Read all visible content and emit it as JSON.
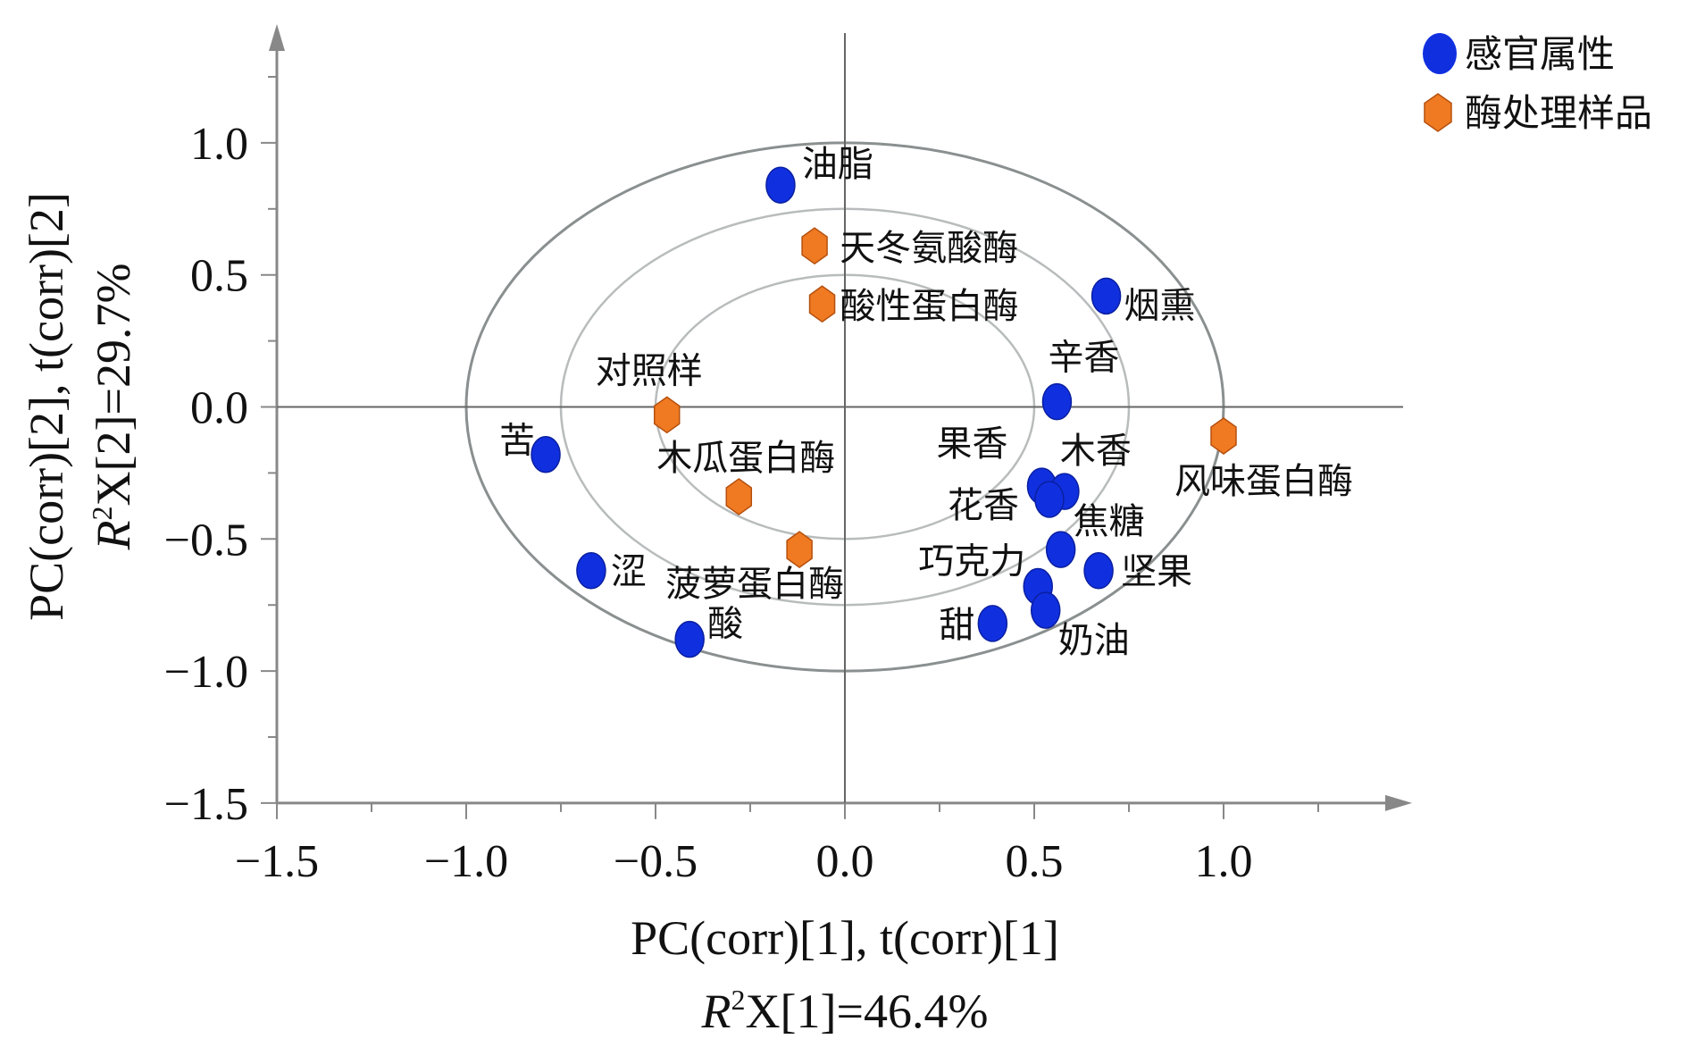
{
  "chart_data": {
    "type": "scatter",
    "title": "",
    "xlabel": "PC(corr)[1], t(corr)[1]",
    "xlabel2_r": "R",
    "xlabel2_rest": "X[1]=46.4%",
    "ylabel": "PC(corr)[2], t(corr)[2]",
    "ylabel2_r": "R",
    "ylabel2_rest": "X[2]=29.7%",
    "superscript": "2",
    "xlim": [
      -1.5,
      1.5
    ],
    "ylim": [
      -1.5,
      1.5
    ],
    "xticks": [
      "-1.5",
      "-1.0",
      "-0.5",
      "0.0",
      "0.5",
      "1.0"
    ],
    "xtick_values": [
      -1.5,
      -1.0,
      -0.5,
      0.0,
      0.5,
      1.0
    ],
    "yticks": [
      "1.0",
      "0.5",
      "0.0",
      "-0.5",
      "-1.0",
      "-1.5"
    ],
    "ytick_values": [
      1.0,
      0.5,
      0.0,
      -0.5,
      -1.0,
      -1.5
    ],
    "ellipse_radii": [
      1.0,
      0.75,
      0.5
    ],
    "legend_position": "top-right",
    "series": [
      {
        "name": "感官属性",
        "color": "#1030e0",
        "marker": "circle",
        "points": [
          {
            "label": "油脂",
            "x": -0.17,
            "y": 0.84
          },
          {
            "label": "烟熏",
            "x": 0.69,
            "y": 0.42
          },
          {
            "label": "辛香",
            "x": 0.56,
            "y": 0.02
          },
          {
            "label": "苦",
            "x": -0.79,
            "y": -0.18
          },
          {
            "label": "果香",
            "x": 0.52,
            "y": -0.3
          },
          {
            "label": "木香",
            "x": 0.58,
            "y": -0.32
          },
          {
            "label": "花香",
            "x": 0.54,
            "y": -0.35
          },
          {
            "label": "焦糖",
            "x": 0.57,
            "y": -0.54
          },
          {
            "label": "巧克力",
            "x": 0.51,
            "y": -0.68
          },
          {
            "label": "坚果",
            "x": 0.67,
            "y": -0.62
          },
          {
            "label": "奶油",
            "x": 0.53,
            "y": -0.77
          },
          {
            "label": "甜",
            "x": 0.39,
            "y": -0.82
          },
          {
            "label": "涩",
            "x": -0.67,
            "y": -0.62
          },
          {
            "label": "酸",
            "x": -0.41,
            "y": -0.88
          }
        ]
      },
      {
        "name": "酶处理样品",
        "color": "#f07a22",
        "marker": "hexagon",
        "points": [
          {
            "label": "天冬氨酸酶",
            "x": -0.08,
            "y": 0.61
          },
          {
            "label": "酸性蛋白酶",
            "x": -0.06,
            "y": 0.39
          },
          {
            "label": "对照样",
            "x": -0.47,
            "y": -0.03
          },
          {
            "label": "风味蛋白酶",
            "x": 1.0,
            "y": -0.11
          },
          {
            "label": "木瓜蛋白酶",
            "x": -0.28,
            "y": -0.34
          },
          {
            "label": "菠萝蛋白酶",
            "x": -0.12,
            "y": -0.54
          }
        ]
      }
    ]
  }
}
